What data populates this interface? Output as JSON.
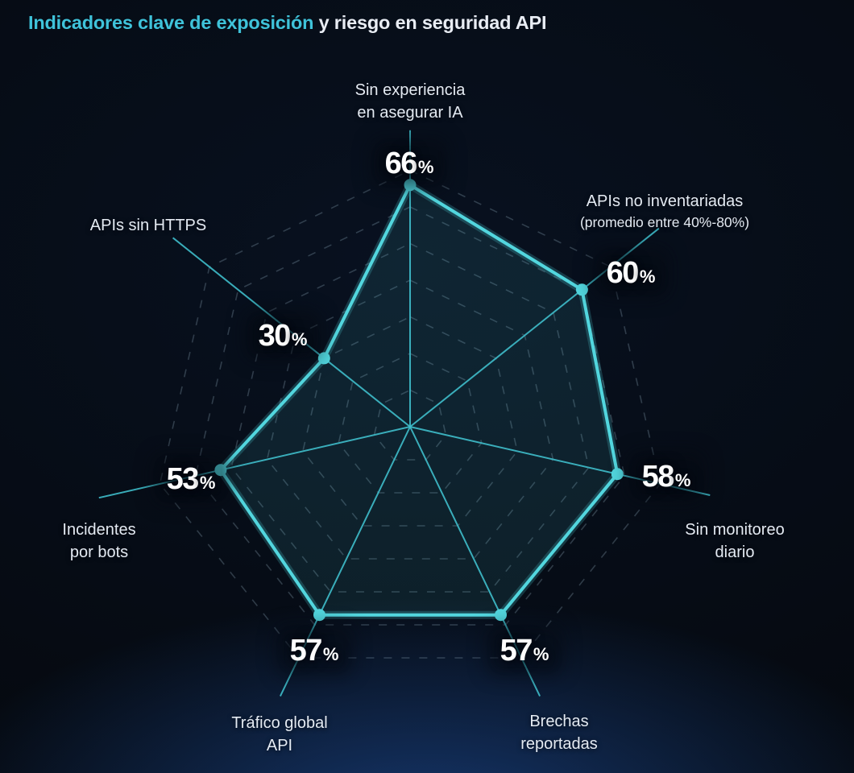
{
  "title": {
    "highlight": "Indicadores clave de exposición",
    "rest": " y riesgo en seguridad API"
  },
  "unit": "%",
  "colors": {
    "accent": "#52d6de",
    "accent_dim": "#3fbecb",
    "title_highlight": "#3fc3da",
    "grid": "#9cb6c8",
    "background": "#05090f",
    "bottom_glow": "#2054a8",
    "label_text": "#e4eaf2",
    "value_text": "#ffffff"
  },
  "chart_data": {
    "type": "radar",
    "title": "Indicadores clave de exposición y riesgo en seguridad API",
    "axes": [
      {
        "label": "Sin experiencia\nen asegurar IA",
        "value": 66
      },
      {
        "label": "APIs no inventariadas",
        "sublabel": "(promedio entre 40%-80%)",
        "value": 60
      },
      {
        "label": "Sin monitoreo\ndiario",
        "value": 58
      },
      {
        "label": "Brechas\nreportadas",
        "value": 57
      },
      {
        "label": "Tráfico global\nAPI",
        "value": 57
      },
      {
        "label": "Incidentes\npor bots",
        "value": 53
      },
      {
        "label": "APIs sin HTTPS",
        "value": 30
      }
    ],
    "scale": {
      "min": 0,
      "max": 100,
      "gridlines_pct": [
        10,
        20,
        30,
        40,
        50,
        60,
        70
      ]
    },
    "legend": null,
    "grid": "dashed-concentric-heptagons"
  }
}
